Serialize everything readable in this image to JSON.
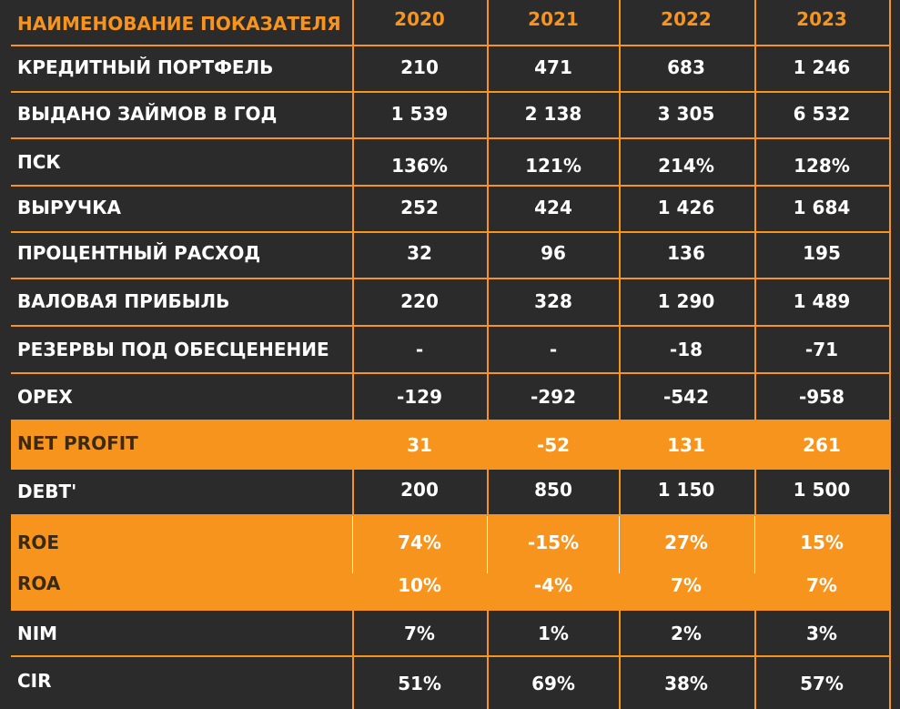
{
  "header": {
    "label": "НАИМЕНОВАНИЕ ПОКАЗАТЕЛЯ",
    "years": [
      "2020",
      "2021",
      "2022",
      "2023"
    ]
  },
  "rows": [
    {
      "label": "КРЕДИТНЫЙ ПОРТФЕЛЬ",
      "values": [
        "210",
        "471",
        "683",
        "1 246"
      ]
    },
    {
      "label": "ВЫДАНО ЗАЙМОВ В ГОД",
      "values": [
        "1 539",
        "2 138",
        "3 305",
        "6 532"
      ]
    },
    {
      "label": "ПСК",
      "values": [
        "136%",
        "121%",
        "214%",
        "128%"
      ]
    },
    {
      "label": "ВЫРУЧКА",
      "values": [
        "252",
        "424",
        "1 426",
        "1 684"
      ]
    },
    {
      "label": "ПРОЦЕНТНЫЙ РАСХОД",
      "values": [
        "32",
        "96",
        "136",
        "195"
      ]
    },
    {
      "label": "ВАЛОВАЯ ПРИБЫЛЬ",
      "values": [
        "220",
        "328",
        "1 290",
        "1 489"
      ]
    },
    {
      "label": "РЕЗЕРВЫ ПОД ОБЕСЦЕНЕНИЕ",
      "values": [
        "-",
        "-",
        "-18",
        "-71"
      ]
    },
    {
      "label": "OPEX",
      "values": [
        "-129",
        "-292",
        "-542",
        "-958"
      ]
    },
    {
      "label": "NET PROFIT",
      "values": [
        "31",
        "-52",
        "131",
        "261"
      ]
    },
    {
      "label": "DEBT'",
      "values": [
        "200",
        "850",
        "1 150",
        "1 500"
      ]
    },
    {
      "label": "ROE",
      "values": [
        "74%",
        "-15%",
        "27%",
        "15%"
      ]
    },
    {
      "label": "ROA",
      "values": [
        "10%",
        "-4%",
        "7%",
        "7%"
      ]
    },
    {
      "label": "NIM",
      "values": [
        "7%",
        "1%",
        "2%",
        "3%"
      ]
    },
    {
      "label": "CIR",
      "values": [
        "51%",
        "69%",
        "38%",
        "57%"
      ]
    }
  ],
  "colors": {
    "background": "#2c2b2b",
    "accent": "#f7941e",
    "text": "#ffffff",
    "highlight_label_text": "#3a2a14"
  }
}
